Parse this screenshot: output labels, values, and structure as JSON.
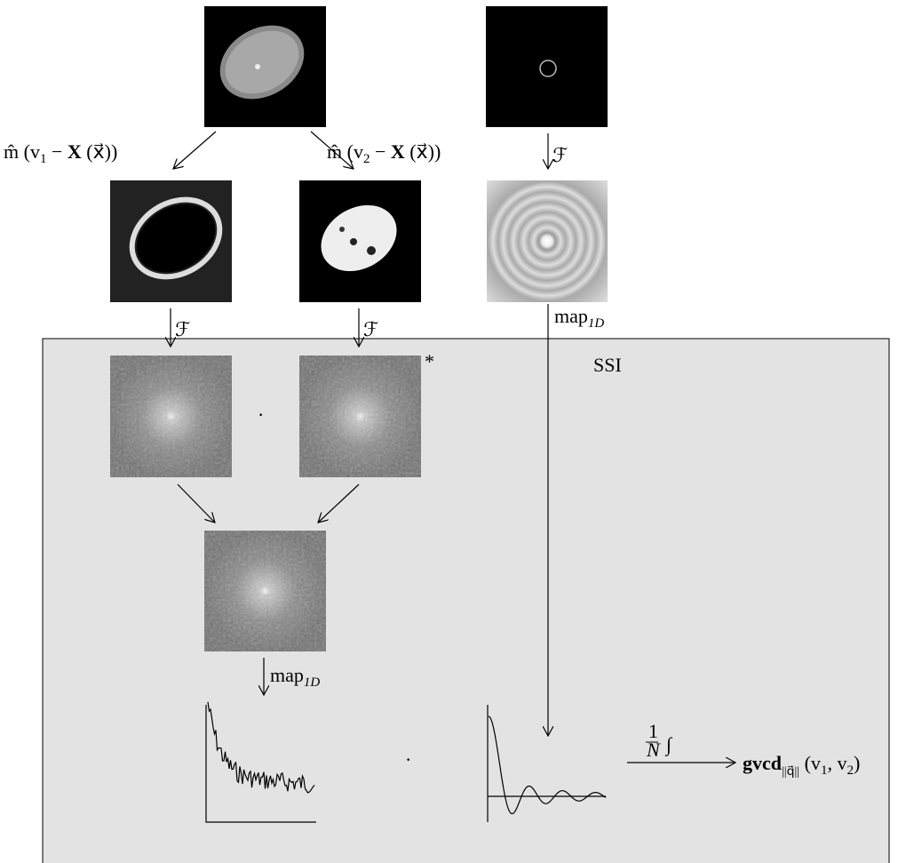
{
  "mask_labels": [
    [
      "m̂ (v",
      "1",
      " − ",
      "X",
      " (x⃗))"
    ],
    [
      "m̂ (v",
      "2",
      " − ",
      "X",
      " (x⃗))"
    ]
  ],
  "fourier_labels": [
    "ℱ",
    "ℱ",
    "ℱ"
  ],
  "map_labels": [
    [
      "map",
      "1D"
    ],
    [
      "map",
      "1D"
    ]
  ],
  "ssi_label": "SSI",
  "conjugate_mark": "*",
  "multiply_marks": [
    "·",
    "·"
  ],
  "integral": {
    "numerator": "1",
    "denominator": "N",
    "symbol": "∫"
  },
  "output": [
    "gvcd",
    "||q⃗||",
    " (v",
    "1",
    ", v",
    "2",
    ")"
  ]
}
